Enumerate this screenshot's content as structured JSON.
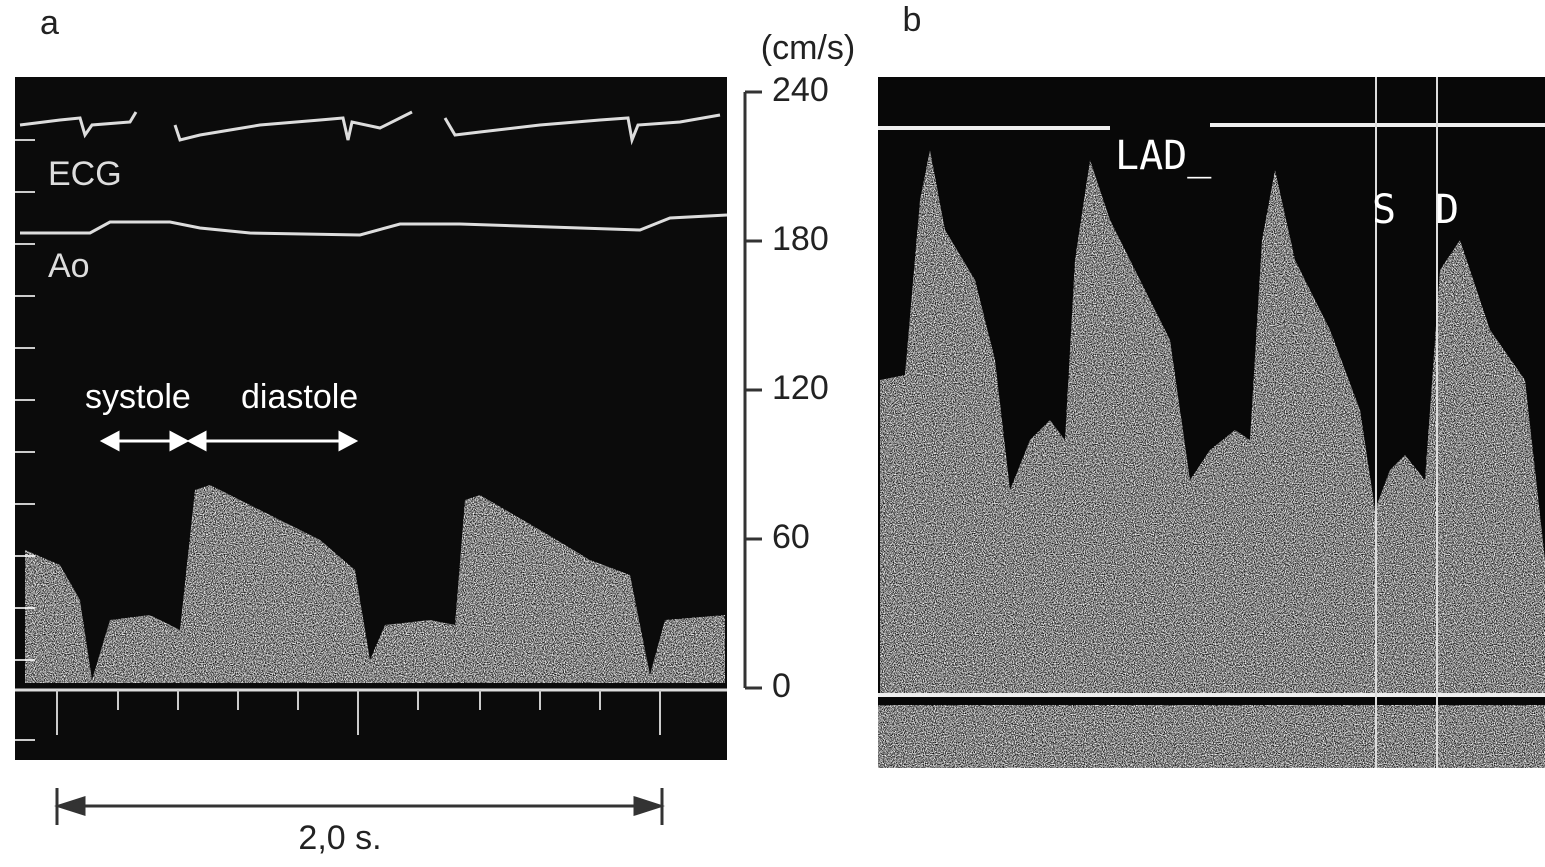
{
  "panel_a": {
    "label": "a",
    "ecg_label": "ECG",
    "ao_label": "Ao",
    "systole_label": "systole",
    "diastole_label": "diastole",
    "time_label": "2,0 s.",
    "velocity_axis": {
      "unit": "(cm/s)",
      "ylim": [
        0,
        240
      ],
      "yticks": [
        0,
        60,
        120,
        180,
        240
      ]
    }
  },
  "panel_b": {
    "label": "b",
    "vessel_label": "LAD_",
    "s_label": "S",
    "d_label": "D"
  }
}
